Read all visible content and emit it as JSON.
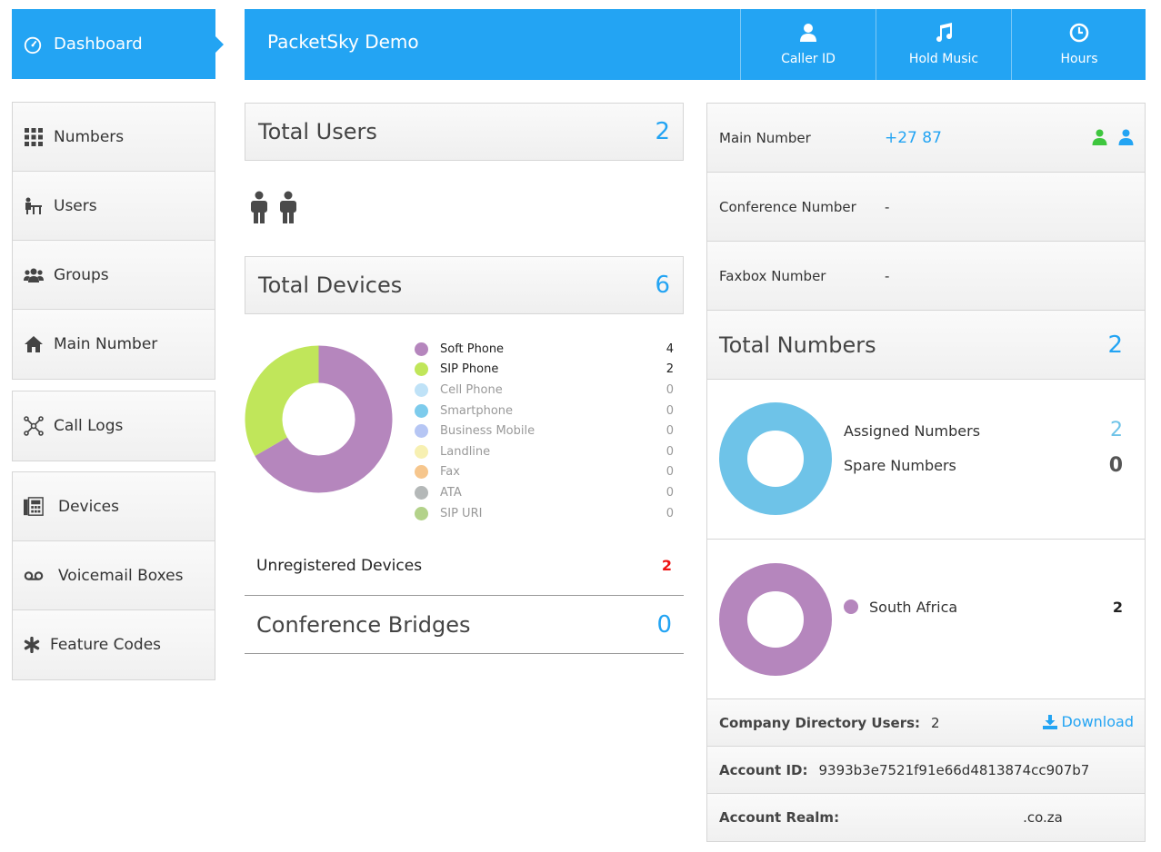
{
  "sidebar": {
    "dashboard": "Dashboard",
    "group1": [
      {
        "label": "Numbers",
        "icon": "grid-icon"
      },
      {
        "label": "Users",
        "icon": "users-desk-icon"
      },
      {
        "label": "Groups",
        "icon": "group-icon"
      },
      {
        "label": "Main Number",
        "icon": "home-icon"
      }
    ],
    "group2": [
      {
        "label": "Call Logs",
        "icon": "network-icon"
      }
    ],
    "group3": [
      {
        "label": "Devices",
        "icon": "fax-device-icon"
      },
      {
        "label": "Voicemail Boxes",
        "icon": "voicemail-icon"
      },
      {
        "label": "Feature Codes",
        "icon": "asterisk-icon"
      }
    ]
  },
  "header": {
    "title": "PacketSky Demo",
    "buttons": [
      {
        "label": "Caller ID",
        "icon": "user-icon"
      },
      {
        "label": "Hold Music",
        "icon": "music-icon"
      },
      {
        "label": "Hours",
        "icon": "clock-icon"
      }
    ],
    "color": "#23a4f3"
  },
  "users": {
    "title": "Total Users",
    "count": "2"
  },
  "devices": {
    "title": "Total Devices",
    "count": "6",
    "legend": [
      {
        "label": "Soft Phone",
        "value": "4",
        "color": "#b586bd"
      },
      {
        "label": "SIP Phone",
        "value": "2",
        "color": "#c0e65a"
      },
      {
        "label": "Cell Phone",
        "value": "0",
        "color": "#bfe2f7"
      },
      {
        "label": "Smartphone",
        "value": "0",
        "color": "#7dcbec"
      },
      {
        "label": "Business Mobile",
        "value": "0",
        "color": "#b6c6f4"
      },
      {
        "label": "Landline",
        "value": "0",
        "color": "#f7f0b2"
      },
      {
        "label": "Fax",
        "value": "0",
        "color": "#f6c68d"
      },
      {
        "label": "ATA",
        "value": "0",
        "color": "#b4b8b8"
      },
      {
        "label": "SIP URI",
        "value": "0",
        "color": "#b3d28a"
      }
    ],
    "unregistered_label": "Unregistered Devices",
    "unregistered_value": "2"
  },
  "conference": {
    "title": "Conference Bridges",
    "count": "0"
  },
  "numbers": {
    "main_label": "Main Number",
    "main_value": "+27 87",
    "conf_label": "Conference Number",
    "conf_value": "-",
    "fax_label": "Faxbox Number",
    "fax_value": "-",
    "total_title": "Total Numbers",
    "total_count": "2",
    "assigned_label": "Assigned Numbers",
    "assigned_value": "2",
    "spare_label": "Spare Numbers",
    "spare_value": "0",
    "country_label": "South Africa",
    "country_value": "2"
  },
  "account": {
    "directory_label": "Company Directory Users:",
    "directory_value": "2",
    "download_label": "Download",
    "id_label": "Account ID:",
    "id_value": "9393b3e7521f91e66d4813874cc907b7",
    "realm_label": "Account Realm:",
    "realm_value": ".co.za"
  },
  "chart_data": [
    {
      "type": "pie",
      "categories": [
        "Soft Phone",
        "SIP Phone",
        "Cell Phone",
        "Smartphone",
        "Business Mobile",
        "Landline",
        "Fax",
        "ATA",
        "SIP URI"
      ],
      "values": [
        4,
        2,
        0,
        0,
        0,
        0,
        0,
        0,
        0
      ],
      "colors": [
        "#b586bd",
        "#c0e65a",
        "#bfe2f7",
        "#7dcbec",
        "#b6c6f4",
        "#f7f0b2",
        "#f6c68d",
        "#b4b8b8",
        "#b3d28a"
      ]
    },
    {
      "type": "pie",
      "categories": [
        "Assigned Numbers",
        "Spare Numbers"
      ],
      "values": [
        2,
        0
      ],
      "colors": [
        "#6ec3e8",
        "#cccccc"
      ]
    },
    {
      "type": "pie",
      "categories": [
        "South Africa"
      ],
      "values": [
        2
      ],
      "colors": [
        "#b586bd"
      ]
    }
  ]
}
